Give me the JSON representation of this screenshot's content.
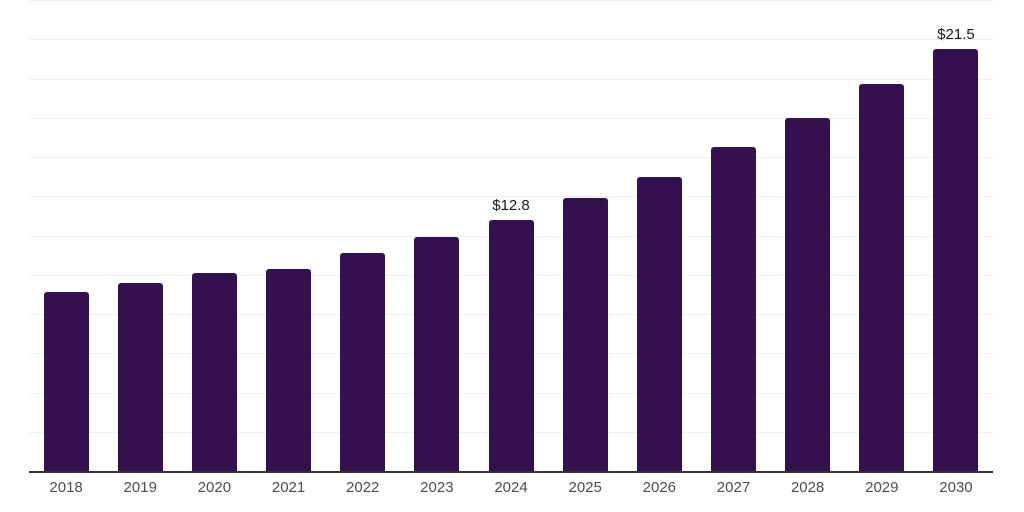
{
  "chart_data": {
    "type": "bar",
    "title": "",
    "xlabel": "",
    "ylabel": "",
    "categories": [
      "2018",
      "2019",
      "2020",
      "2021",
      "2022",
      "2023",
      "2024",
      "2025",
      "2026",
      "2027",
      "2028",
      "2029",
      "2030"
    ],
    "values": [
      9.1,
      9.6,
      10.1,
      10.3,
      11.1,
      11.9,
      12.8,
      13.9,
      15.0,
      16.5,
      18.0,
      19.7,
      21.5
    ],
    "data_labels": {
      "2024": "$12.8",
      "2030": "$21.5"
    },
    "value_prefix": "$",
    "ylim": [
      0,
      24
    ],
    "gridline_step": 2,
    "grid": "horizontal-only",
    "legend": "none",
    "y_axis_labels_visible": false,
    "colors": {
      "bar": "#34114e",
      "grid": "#efefef",
      "axis": "#333333",
      "tick_label": "#4d4d4d",
      "value_label": "#1a1a1a",
      "background": "#ffffff"
    }
  }
}
